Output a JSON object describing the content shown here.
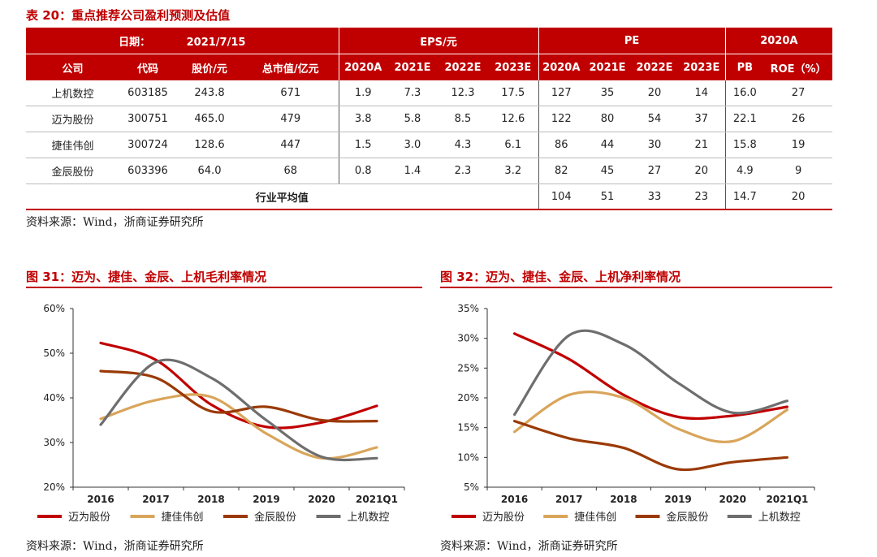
{
  "table20": {
    "title": "表 20：重点推荐公司盈利预测及估值",
    "date_label": "日期：",
    "date_value": "2021/7/15",
    "group_eps": "EPS/元",
    "group_pe": "PE",
    "group_2020a": "2020A",
    "columns": [
      "公司",
      "代码",
      "股价/元",
      "总市值/亿元",
      "2020A",
      "2021E",
      "2022E",
      "2023E",
      "2020A",
      "2021E",
      "2022E",
      "2023E",
      "PB",
      "ROE（%）"
    ],
    "rows": [
      [
        "上机数控",
        "603185",
        "243.8",
        "671",
        "1.9",
        "7.3",
        "12.3",
        "17.5",
        "127",
        "35",
        "20",
        "14",
        "16.0",
        "27"
      ],
      [
        "迈为股份",
        "300751",
        "465.0",
        "479",
        "3.8",
        "5.8",
        "8.5",
        "12.6",
        "122",
        "80",
        "54",
        "37",
        "22.1",
        "26"
      ],
      [
        "捷佳伟创",
        "300724",
        "128.6",
        "447",
        "1.5",
        "3.0",
        "4.3",
        "6.1",
        "86",
        "44",
        "30",
        "21",
        "15.8",
        "19"
      ],
      [
        "金辰股份",
        "603396",
        "64.0",
        "68",
        "0.8",
        "1.4",
        "2.3",
        "3.2",
        "82",
        "45",
        "27",
        "20",
        "4.9",
        "9"
      ]
    ],
    "avg_label": "行业平均值",
    "avg_values": [
      "104",
      "51",
      "33",
      "23",
      "14.7",
      "20"
    ],
    "source": "资料来源：Wind，浙商证券研究所"
  },
  "fig31": {
    "title": "图 31：迈为、捷佳、金辰、上机毛利率情况",
    "source": "资料来源：Wind，浙商证券研究所"
  },
  "fig32": {
    "title": "图 32：迈为、捷佳、金辰、上机净利率情况",
    "source": "资料来源：Wind，浙商证券研究所"
  },
  "colors": {
    "red": "#c00000",
    "tan": "#d9a55b",
    "brown": "#9a3a06",
    "gray": "#6e6e6e"
  },
  "chart_data": [
    {
      "type": "line",
      "title": "图 31：迈为、捷佳、金辰、上机毛利率情况",
      "x": [
        "2016",
        "2017",
        "2018",
        "2019",
        "2020",
        "2021Q1"
      ],
      "ylim": [
        20,
        60
      ],
      "yticks": [
        "20%",
        "30%",
        "40%",
        "50%",
        "60%"
      ],
      "grid": false,
      "legend": "bottom",
      "series": [
        {
          "name": "迈为股份",
          "color": "#c00000",
          "values": [
            52.3,
            48.5,
            38.5,
            33.5,
            34.5,
            38.2
          ]
        },
        {
          "name": "捷佳伟创",
          "color": "#d9a55b",
          "values": [
            35.3,
            39.5,
            40.2,
            32.0,
            26.5,
            28.9
          ]
        },
        {
          "name": "金辰股份",
          "color": "#9a3a06",
          "values": [
            46.0,
            44.5,
            37.0,
            38.0,
            35.0,
            34.8
          ]
        },
        {
          "name": "上机数控",
          "color": "#6e6e6e",
          "values": [
            34.0,
            48.0,
            44.5,
            35.0,
            26.8,
            26.5
          ]
        }
      ]
    },
    {
      "type": "line",
      "title": "图 32：迈为、捷佳、金辰、上机净利率情况",
      "x": [
        "2016",
        "2017",
        "2018",
        "2019",
        "2020",
        "2021Q1"
      ],
      "ylim": [
        5,
        35
      ],
      "yticks": [
        "5%",
        "10%",
        "15%",
        "20%",
        "25%",
        "30%",
        "35%"
      ],
      "grid": false,
      "legend": "bottom",
      "series": [
        {
          "name": "迈为股份",
          "color": "#c00000",
          "values": [
            30.8,
            26.5,
            20.5,
            16.8,
            17.0,
            18.5
          ]
        },
        {
          "name": "捷佳伟创",
          "color": "#d9a55b",
          "values": [
            14.3,
            20.5,
            20.0,
            14.8,
            12.7,
            18.0
          ]
        },
        {
          "name": "金辰股份",
          "color": "#9a3a06",
          "values": [
            16.1,
            13.2,
            11.6,
            8.0,
            9.2,
            10.0
          ]
        },
        {
          "name": "上机数控",
          "color": "#6e6e6e",
          "values": [
            17.2,
            30.5,
            29.0,
            22.5,
            17.5,
            19.5
          ]
        }
      ]
    }
  ]
}
